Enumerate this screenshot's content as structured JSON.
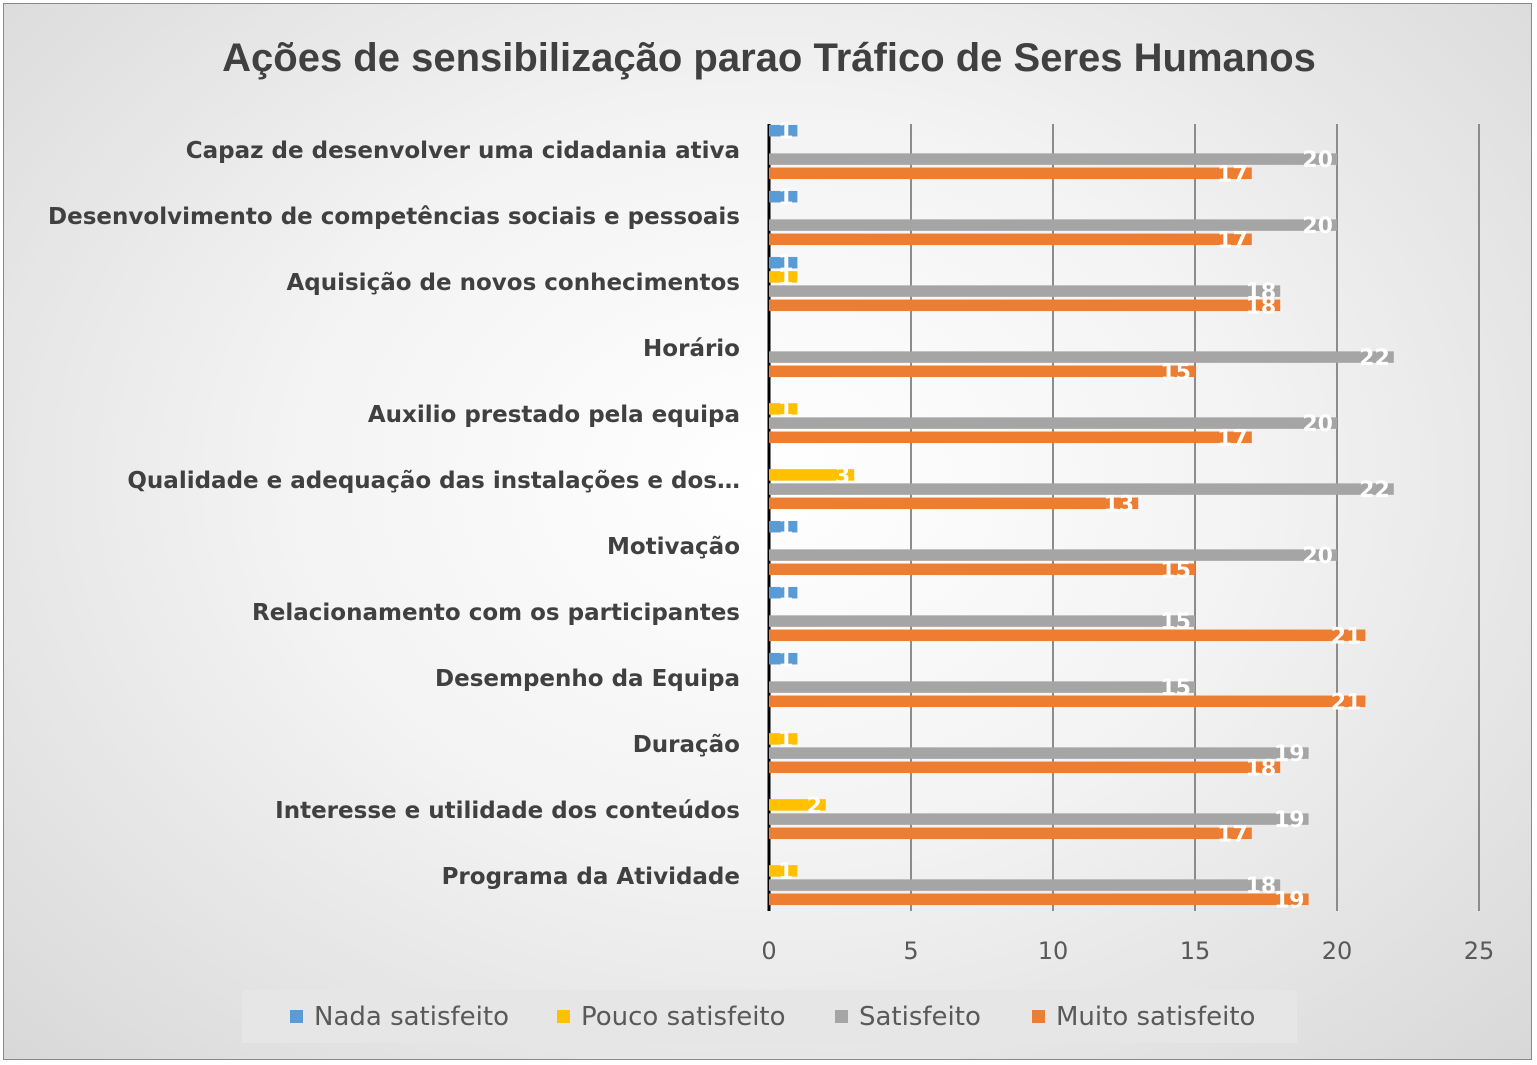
{
  "chart_data": {
    "type": "bar",
    "orientation": "horizontal",
    "title": "Ações de sensibilização parao Tráfico de Seres Humanos",
    "xlim": [
      0,
      25
    ],
    "xticks": [
      0,
      5,
      10,
      15,
      20,
      25
    ],
    "grid": true,
    "legend_position": "bottom",
    "categories": [
      "Capaz de desenvolver uma cidadania ativa",
      "Desenvolvimento de competências sociais e pessoais",
      "Aquisição de novos conhecimentos",
      "Horário",
      "Auxilio prestado pela equipa",
      "Qualidade e adequação das instalações e dos…",
      "Motivação",
      "Relacionamento com os participantes",
      "Desempenho da Equipa",
      "Duração",
      "Interesse  e utilidade dos conteúdos",
      "Programa da Atividade"
    ],
    "series": [
      {
        "name": "Nada satisfeito",
        "color": "#5b9bd5",
        "values": [
          1,
          1,
          1,
          null,
          null,
          null,
          1,
          1,
          1,
          null,
          null,
          null
        ]
      },
      {
        "name": "Pouco satisfeito",
        "color": "#ffc000",
        "values": [
          null,
          null,
          1,
          null,
          1,
          3,
          null,
          null,
          null,
          1,
          2,
          1
        ]
      },
      {
        "name": "Satisfeito",
        "color": "#a5a5a5",
        "values": [
          20,
          20,
          18,
          22,
          20,
          22,
          20,
          15,
          15,
          19,
          19,
          18
        ]
      },
      {
        "name": "Muito satisfeito",
        "color": "#ed7d31",
        "values": [
          17,
          17,
          18,
          15,
          17,
          13,
          15,
          21,
          21,
          18,
          17,
          19
        ]
      }
    ]
  }
}
